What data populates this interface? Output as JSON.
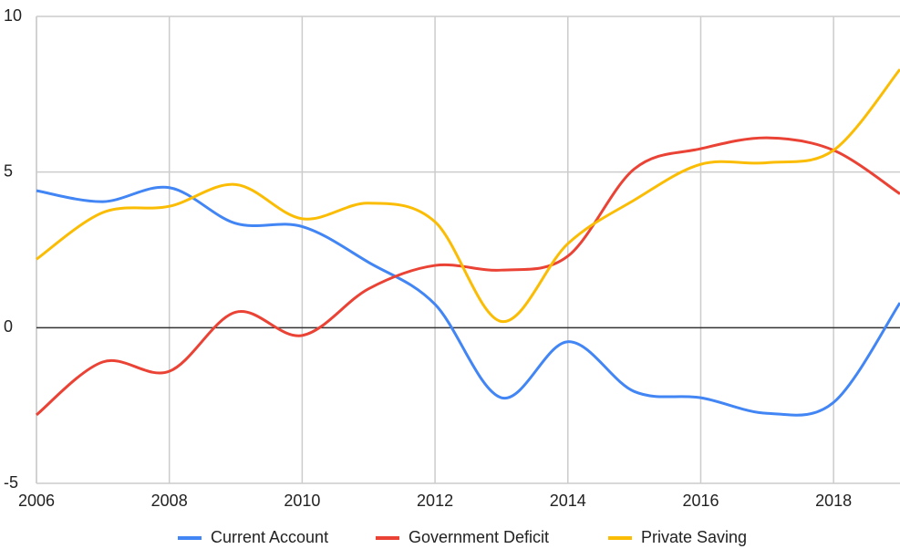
{
  "chart_data": {
    "type": "line",
    "x": [
      2006,
      2007,
      2008,
      2009,
      2010,
      2011,
      2012,
      2013,
      2014,
      2015,
      2016,
      2017,
      2018,
      2019
    ],
    "series": [
      {
        "name": "Current Account",
        "color": "#4285f4",
        "values": [
          4.4,
          4.05,
          4.5,
          3.35,
          3.25,
          2.1,
          0.75,
          -2.25,
          -0.45,
          -2.05,
          -2.25,
          -2.75,
          -2.4,
          0.8
        ]
      },
      {
        "name": "Government Deficit",
        "color": "#ea4335",
        "values": [
          -2.8,
          -1.1,
          -1.4,
          0.5,
          -0.25,
          1.25,
          2.0,
          1.85,
          2.3,
          5.1,
          5.75,
          6.1,
          5.7,
          4.3
        ]
      },
      {
        "name": "Private Saving",
        "color": "#fbbc04",
        "values": [
          2.2,
          3.7,
          3.9,
          4.6,
          3.5,
          4.0,
          3.4,
          0.2,
          2.7,
          4.1,
          5.25,
          5.3,
          5.7,
          8.3
        ]
      }
    ],
    "xlim": [
      2006,
      2019
    ],
    "xticks": [
      2006,
      2008,
      2010,
      2012,
      2014,
      2016,
      2018
    ],
    "ylim": [
      -5,
      10
    ],
    "yticks": [
      -5,
      0,
      5,
      10
    ],
    "grid": true,
    "legend": "bottom"
  }
}
